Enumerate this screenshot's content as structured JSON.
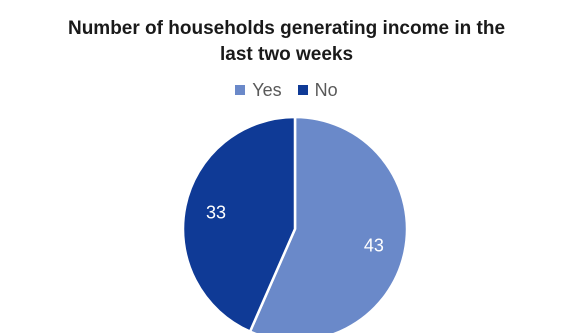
{
  "chart_data": {
    "type": "pie",
    "title_lines": [
      "Number of households generating income in the",
      "last two weeks"
    ],
    "categories": [
      "Yes",
      "No"
    ],
    "values": [
      43,
      33
    ],
    "colors": [
      "#6a89c9",
      "#0f3a96"
    ],
    "legend_position": "top",
    "data_labels": true
  }
}
